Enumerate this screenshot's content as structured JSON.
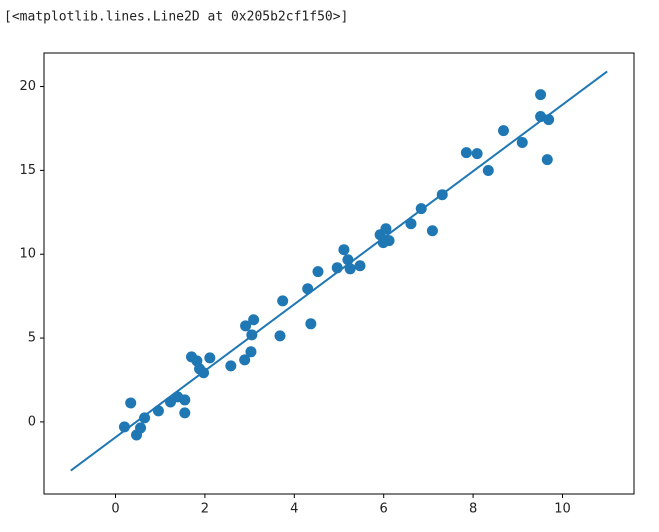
{
  "output": "[<matplotlib.lines.Line2D at 0x205b2cf1f50>]",
  "chart_data": {
    "type": "scatter",
    "x": [
      0.2,
      0.34,
      0.47,
      0.56,
      0.65,
      0.96,
      1.23,
      1.39,
      1.55,
      1.55,
      1.7,
      1.82,
      1.88,
      1.97,
      2.11,
      2.58,
      2.89,
      2.91,
      3.03,
      3.05,
      3.09,
      3.68,
      3.74,
      4.3,
      4.37,
      4.53,
      4.96,
      5.11,
      5.2,
      5.25,
      5.47,
      5.92,
      6.01,
      6.05,
      5.99,
      6.12,
      6.61,
      6.84,
      7.09,
      7.31,
      7.85,
      8.09,
      8.34,
      8.68,
      9.1,
      9.51,
      9.51,
      9.69,
      9.66
    ],
    "y": [
      -0.3,
      1.13,
      -0.78,
      -0.36,
      0.24,
      0.66,
      1.19,
      1.49,
      1.31,
      0.54,
      3.88,
      3.64,
      3.16,
      2.93,
      3.82,
      3.34,
      3.7,
      5.73,
      4.18,
      5.19,
      6.09,
      5.13,
      7.22,
      7.94,
      5.85,
      8.96,
      9.19,
      10.27,
      9.67,
      9.13,
      9.31,
      11.16,
      10.81,
      11.52,
      10.69,
      10.81,
      11.82,
      12.72,
      11.4,
      13.55,
      16.06,
      16.0,
      14.99,
      17.37,
      16.66,
      19.52,
      18.21,
      18.03,
      15.64
    ],
    "color": "#1f77b4",
    "line": {
      "x": [
        -1,
        11
      ],
      "y": [
        -2.9,
        20.9
      ],
      "color": "#1f77b4"
    },
    "xlim": [
      -1.6,
      11.6
    ],
    "ylim": [
      -4.3,
      22.0
    ],
    "xticks": [
      0,
      2,
      4,
      6,
      8,
      10
    ],
    "yticks": [
      0,
      5,
      10,
      15,
      20
    ]
  }
}
